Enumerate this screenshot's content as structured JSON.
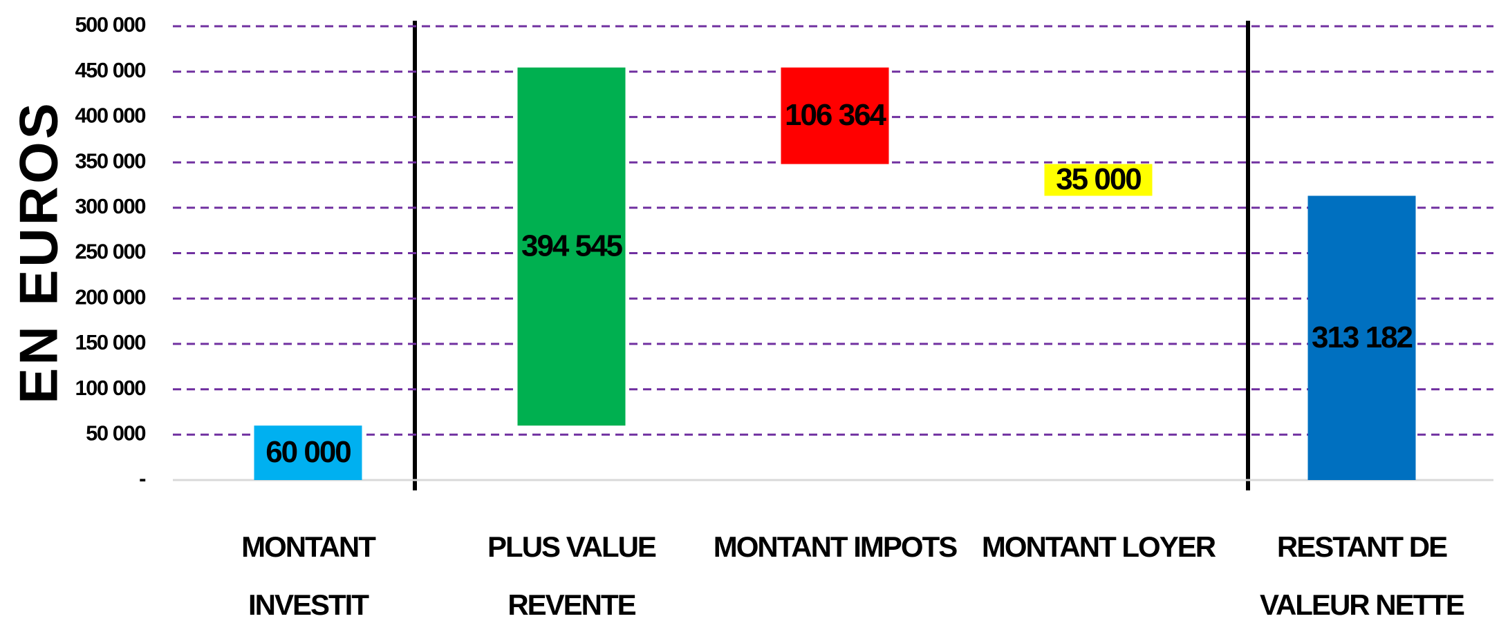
{
  "chart_data": {
    "type": "waterfall",
    "y_axis_label": "EN EUROS",
    "categories": [
      [
        "MONTANT",
        "INVESTIT"
      ],
      [
        "PLUS VALUE",
        "REVENTE"
      ],
      [
        "MONTANT IMPOTS"
      ],
      [
        "MONTANT LOYER"
      ],
      [
        "RESTANT DE",
        "VALEUR NETTE"
      ]
    ],
    "values": [
      60000,
      394545,
      -106364,
      -35000,
      313182
    ],
    "value_labels": [
      "60 000",
      "394 545",
      "106 364",
      "35 000",
      "313 182"
    ],
    "measure": [
      "relative",
      "relative",
      "relative",
      "relative",
      "total"
    ],
    "colors": [
      "#00b0f0",
      "#00b050",
      "#ff0000",
      "#ffff00",
      "#0070c0"
    ],
    "ylim": [
      0,
      500000
    ],
    "yticks": [
      {
        "value": 0,
        "label": "-"
      },
      {
        "value": 50000,
        "label": "50 000"
      },
      {
        "value": 100000,
        "label": "100 000"
      },
      {
        "value": 150000,
        "label": "150 000"
      },
      {
        "value": 200000,
        "label": "200 000"
      },
      {
        "value": 250000,
        "label": "250 000"
      },
      {
        "value": 300000,
        "label": "300 000"
      },
      {
        "value": 350000,
        "label": "350 000"
      },
      {
        "value": 400000,
        "label": "400 000"
      },
      {
        "value": 450000,
        "label": "450 000"
      },
      {
        "value": 500000,
        "label": "500 000"
      }
    ],
    "grid": true,
    "grid_color": "#7030a0"
  }
}
